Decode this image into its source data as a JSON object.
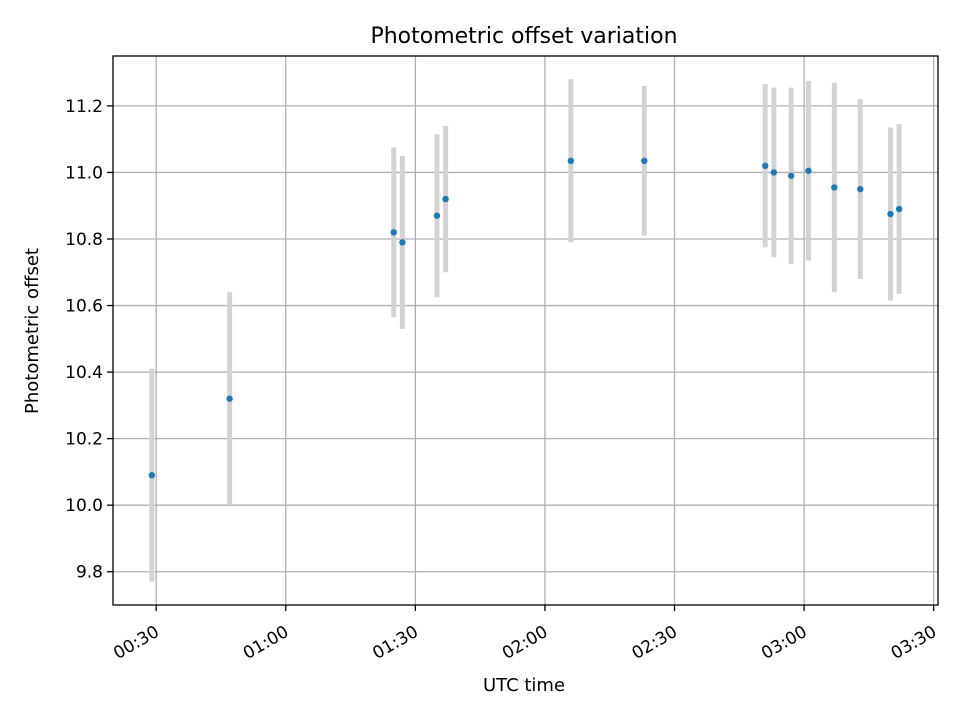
{
  "chart_data": {
    "type": "scatter",
    "title": "Photometric offset variation",
    "xlabel": "UTC time",
    "ylabel": "Photometric offset",
    "x_unit": "UTC time (HH:MM)",
    "xlim": [
      "00:20",
      "03:31"
    ],
    "ylim": [
      9.7,
      11.35
    ],
    "x_ticks": [
      "00:30",
      "01:00",
      "01:30",
      "02:00",
      "02:30",
      "03:00",
      "03:30"
    ],
    "y_ticks": [
      "9.8",
      "10.0",
      "10.2",
      "10.4",
      "10.6",
      "10.8",
      "11.0",
      "11.2"
    ],
    "grid": true,
    "legend": "none",
    "series": [
      {
        "marker_color": "#1f77b4",
        "errorbar_color": "#d3d3d3",
        "points": [
          {
            "x": "00:29",
            "y": 10.09,
            "yerr": 0.32
          },
          {
            "x": "00:47",
            "y": 10.32,
            "yerr": 0.32
          },
          {
            "x": "01:25",
            "y": 10.82,
            "yerr": 0.255
          },
          {
            "x": "01:27",
            "y": 10.79,
            "yerr": 0.26
          },
          {
            "x": "01:35",
            "y": 10.87,
            "yerr": 0.245
          },
          {
            "x": "01:37",
            "y": 10.92,
            "yerr": 0.22
          },
          {
            "x": "02:06",
            "y": 11.035,
            "yerr": 0.245
          },
          {
            "x": "02:23",
            "y": 11.035,
            "yerr": 0.225
          },
          {
            "x": "02:51",
            "y": 11.02,
            "yerr": 0.245
          },
          {
            "x": "02:53",
            "y": 11.0,
            "yerr": 0.255
          },
          {
            "x": "02:57",
            "y": 10.99,
            "yerr": 0.265
          },
          {
            "x": "03:01",
            "y": 11.005,
            "yerr": 0.27
          },
          {
            "x": "03:07",
            "y": 10.955,
            "yerr": 0.315
          },
          {
            "x": "03:13",
            "y": 10.95,
            "yerr": 0.27
          },
          {
            "x": "03:20",
            "y": 10.875,
            "yerr": 0.26
          },
          {
            "x": "03:22",
            "y": 10.89,
            "yerr": 0.255
          }
        ]
      }
    ]
  }
}
